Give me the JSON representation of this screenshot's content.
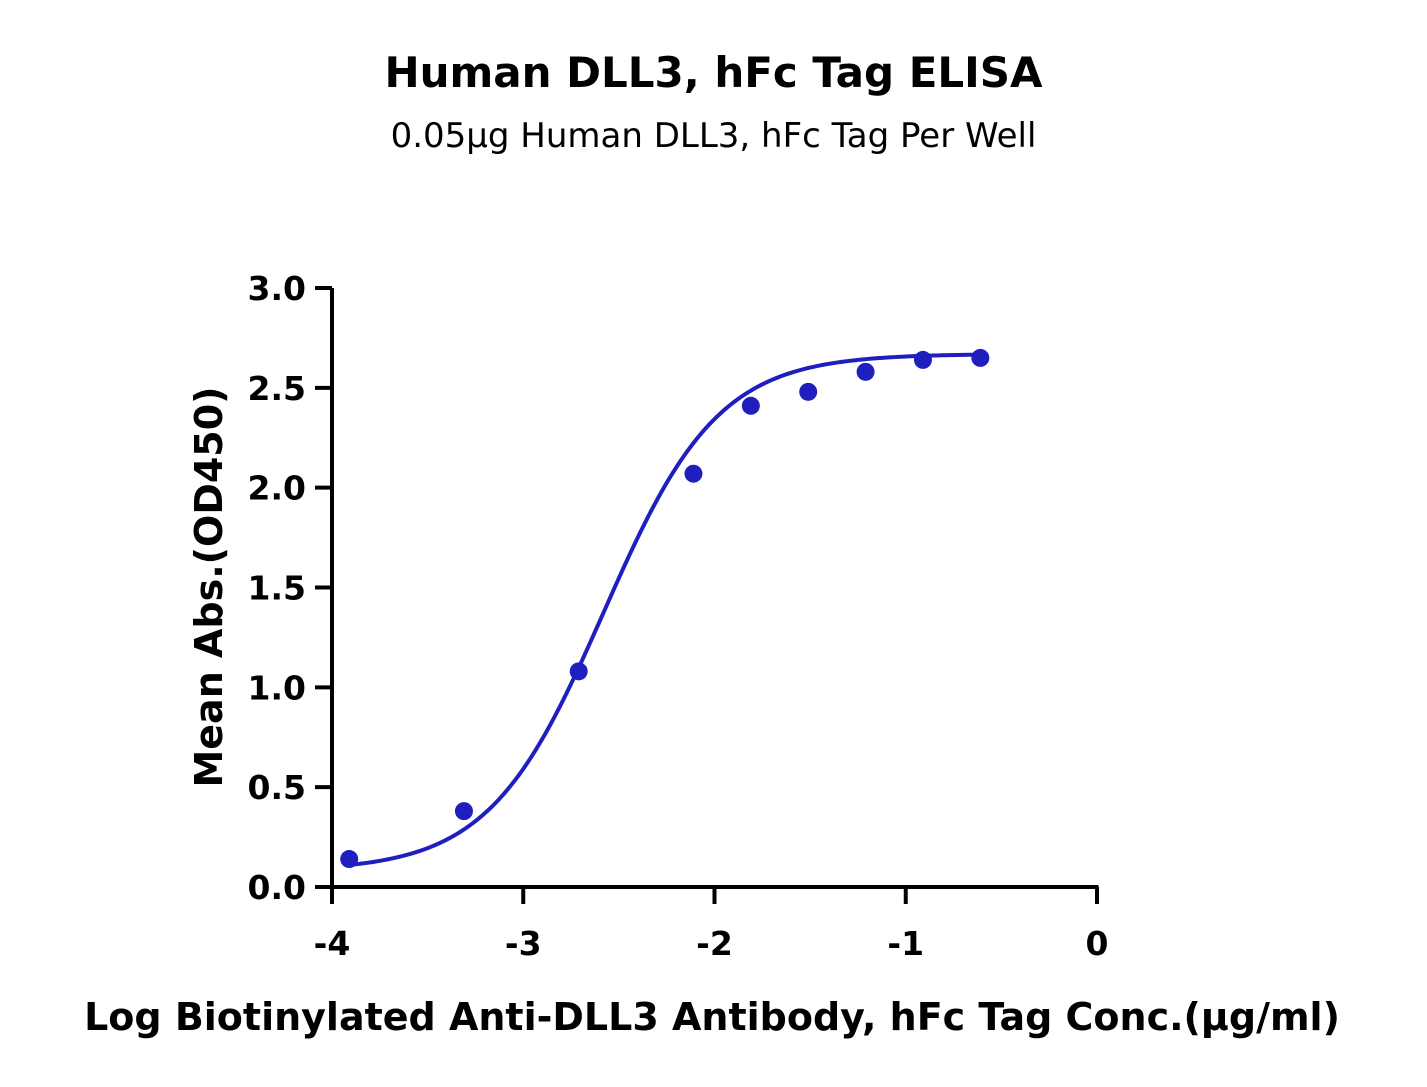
{
  "chart_data": {
    "type": "scatter",
    "title": "Human DLL3, hFc Tag ELISA",
    "subtitle": "0.05μg Human DLL3, hFc Tag Per Well",
    "xlabel": "Log Biotinylated Anti-DLL3 Antibody, hFc Tag Conc.(μg/ml)",
    "ylabel": "Mean Abs.(OD450)",
    "xlim": [
      -4,
      0
    ],
    "ylim": [
      0,
      3.0
    ],
    "x_ticks": [
      "-4",
      "-3",
      "-2",
      "-1",
      "0"
    ],
    "y_ticks": [
      "0.0",
      "0.5",
      "1.0",
      "1.5",
      "2.0",
      "2.5",
      "3.0"
    ],
    "grid": false,
    "colors": {
      "series": "#1f1fbf",
      "axis": "#000000"
    },
    "series": [
      {
        "points": [
          {
            "x": -3.91,
            "y": 0.14
          },
          {
            "x": -3.31,
            "y": 0.38
          },
          {
            "x": -2.71,
            "y": 1.08
          },
          {
            "x": -2.11,
            "y": 2.07
          },
          {
            "x": -1.81,
            "y": 2.41
          },
          {
            "x": -1.51,
            "y": 2.48
          },
          {
            "x": -1.21,
            "y": 2.58
          },
          {
            "x": -0.91,
            "y": 2.64
          },
          {
            "x": -0.61,
            "y": 2.65
          }
        ],
        "fit": {
          "model": "four-parameter logistic",
          "bottom": 0.08,
          "top": 2.67,
          "logEC50": -2.58,
          "hill": 1.45
        }
      }
    ]
  }
}
